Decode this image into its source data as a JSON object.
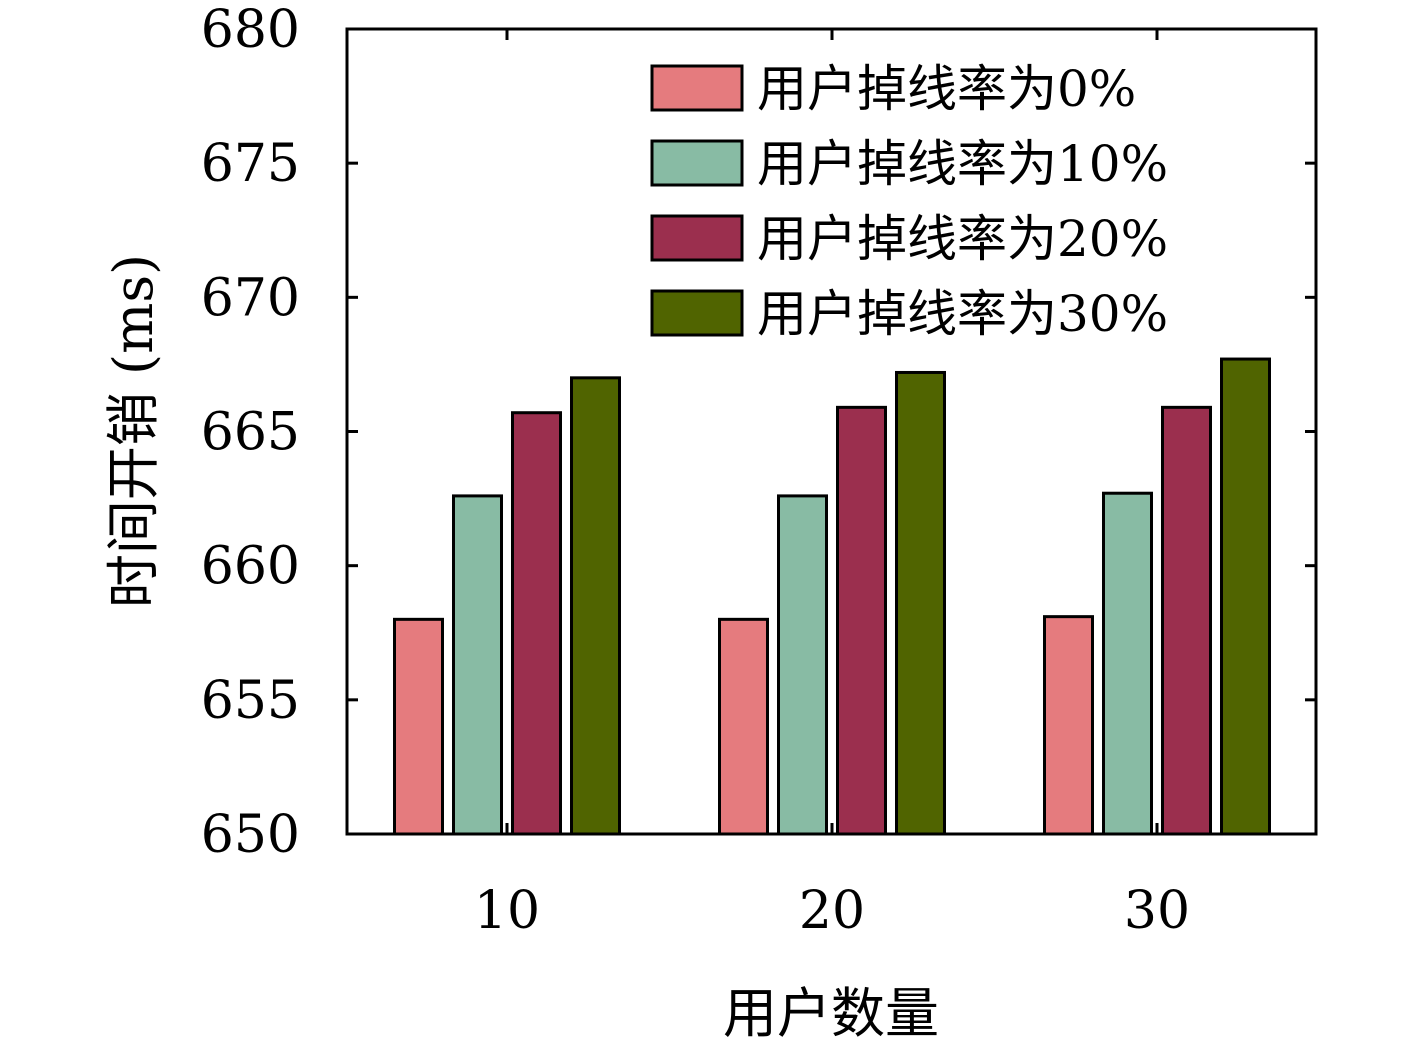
{
  "chart_data": {
    "type": "bar",
    "title": "",
    "xlabel": "用户数量",
    "ylabel": "时间开销 (ms)",
    "categories": [
      "10",
      "20",
      "30"
    ],
    "ylim": [
      650,
      680
    ],
    "yticks": [
      650,
      655,
      660,
      665,
      670,
      675,
      680
    ],
    "grid": false,
    "legend_position": "top-right",
    "series": [
      {
        "name": "用户掉线率为0%",
        "color": "#e57b7e",
        "values": [
          658.0,
          658.0,
          658.1
        ]
      },
      {
        "name": "用户掉线率为10%",
        "color": "#88bba4",
        "values": [
          662.6,
          662.6,
          662.7
        ]
      },
      {
        "name": "用户掉线率为20%",
        "color": "#9b2f4e",
        "values": [
          665.7,
          665.9,
          665.9
        ]
      },
      {
        "name": "用户掉线率为30%",
        "color": "#506400",
        "values": [
          667.0,
          667.2,
          667.7
        ]
      }
    ]
  }
}
